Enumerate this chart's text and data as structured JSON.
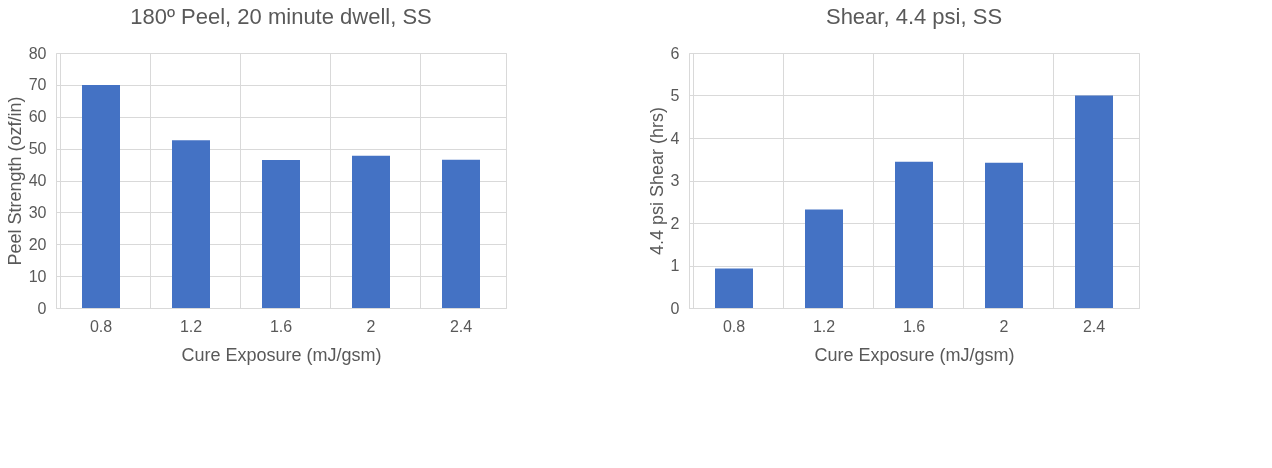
{
  "chart_data": [
    {
      "type": "bar",
      "title": "180º Peel, 20 minute dwell, SS",
      "xlabel": "Cure Exposure (mJ/gsm)",
      "ylabel": "Peel Strength (ozf/in)",
      "categories": [
        "0.8",
        "1.2",
        "1.6",
        "2",
        "2.4"
      ],
      "values": [
        70,
        52.6,
        46.4,
        47.8,
        46.5
      ],
      "color": "#4472c4",
      "ylim": [
        0,
        80
      ],
      "yticks": [
        0,
        10,
        20,
        30,
        40,
        50,
        60,
        70,
        80
      ],
      "grid": true
    },
    {
      "type": "bar",
      "title": "Shear, 4.4 psi, SS",
      "xlabel": "Cure Exposure (mJ/gsm)",
      "ylabel": "4.4 psi Shear (hrs)",
      "categories": [
        "0.8",
        "1.2",
        "1.6",
        "2",
        "2.4"
      ],
      "values": [
        0.93,
        2.32,
        3.44,
        3.42,
        5.0
      ],
      "color": "#4472c4",
      "ylim": [
        0,
        6
      ],
      "yticks": [
        0,
        1,
        2,
        3,
        4,
        5,
        6
      ],
      "grid": true
    }
  ]
}
